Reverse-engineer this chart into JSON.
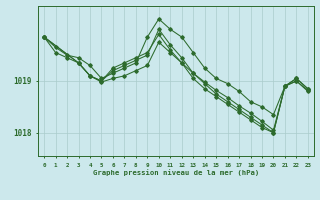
{
  "background_color": "#cce8ec",
  "grid_color": "#aacccc",
  "line_color": "#2d6b2d",
  "xlabel": "Graphe pression niveau de la mer (hPa)",
  "ylabel_ticks": [
    1018,
    1019
  ],
  "xlim": [
    -0.5,
    23.5
  ],
  "ylim": [
    1017.55,
    1020.45
  ],
  "xticks": [
    0,
    1,
    2,
    3,
    4,
    5,
    6,
    7,
    8,
    9,
    10,
    11,
    12,
    13,
    14,
    15,
    16,
    17,
    18,
    19,
    20,
    21,
    22,
    23
  ],
  "series": [
    {
      "x": [
        0,
        1,
        2,
        3,
        4,
        5,
        6,
        7,
        8,
        9,
        10,
        11,
        12,
        13,
        14,
        15,
        16,
        17,
        18,
        19,
        20,
        21,
        22,
        23
      ],
      "y": [
        1019.85,
        1019.65,
        1019.5,
        1019.45,
        1019.3,
        1019.05,
        1019.15,
        1019.25,
        1019.35,
        1019.85,
        1020.2,
        1020.0,
        1019.85,
        1019.55,
        1019.25,
        1019.05,
        1018.95,
        1018.8,
        1018.6,
        1018.5,
        1018.35,
        1018.9,
        1019.05,
        1018.85
      ]
    },
    {
      "x": [
        0,
        1,
        2,
        3,
        4,
        5,
        6,
        7,
        8,
        9,
        10,
        11,
        12,
        13,
        14,
        15,
        16,
        17,
        18,
        19,
        20,
        21,
        22,
        23
      ],
      "y": [
        1019.85,
        1019.55,
        1019.45,
        1019.35,
        1019.1,
        1019.0,
        1019.25,
        1019.35,
        1019.45,
        1019.55,
        1019.9,
        1019.6,
        1019.35,
        1019.05,
        1018.85,
        1018.7,
        1018.55,
        1018.4,
        1018.25,
        1018.1,
        1018.0,
        1018.9,
        1019.05,
        1018.85
      ]
    },
    {
      "x": [
        0,
        3,
        4,
        5,
        6,
        7,
        8,
        9,
        10,
        11,
        12,
        13,
        14,
        15,
        16,
        17,
        18,
        19,
        20,
        21,
        22,
        23
      ],
      "y": [
        1019.85,
        1019.35,
        1019.1,
        1019.0,
        1019.2,
        1019.3,
        1019.4,
        1019.5,
        1020.0,
        1019.7,
        1019.45,
        1019.15,
        1018.95,
        1018.75,
        1018.6,
        1018.45,
        1018.3,
        1018.15,
        1018.0,
        1018.9,
        1019.0,
        1018.8
      ]
    },
    {
      "x": [
        0,
        3,
        4,
        5,
        6,
        7,
        8,
        9,
        10,
        11,
        12,
        13,
        14,
        15,
        16,
        17,
        18,
        19,
        20,
        21,
        22,
        23
      ],
      "y": [
        1019.85,
        1019.35,
        1019.1,
        1018.98,
        1019.05,
        1019.1,
        1019.2,
        1019.3,
        1019.75,
        1019.55,
        1019.35,
        1019.15,
        1018.98,
        1018.82,
        1018.68,
        1018.52,
        1018.38,
        1018.22,
        1018.05,
        1018.9,
        1019.0,
        1018.82
      ]
    }
  ]
}
